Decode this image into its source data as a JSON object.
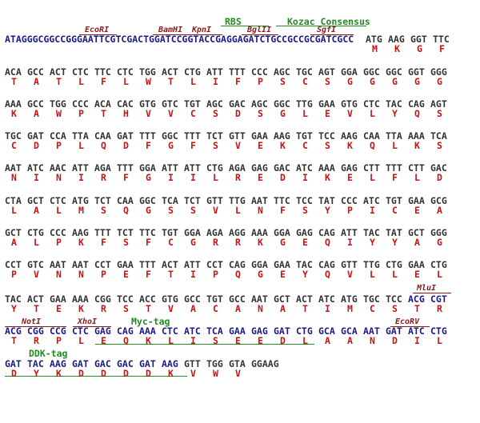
{
  "colors": {
    "dna_vector": "#1a1a8c",
    "dna_insert": "#333333",
    "amino_acid": "#cc1111",
    "restriction_site": "#8b1a1a",
    "feature": "#228b22"
  },
  "header": {
    "dna_vector": "ATAGGGCGGCCGGGAATTCGTCGACTGGATCCGGTACCGAGGAGATCTGCCGCCGCGATCGCC",
    "codons": [
      "ATG",
      "AAG",
      "GGT",
      "TTC"
    ],
    "amino_acids": [
      "M",
      "K",
      "G",
      "F"
    ],
    "sites": [
      "EcoRI",
      "BamHI",
      "KpnI",
      "BglII",
      "SgfI"
    ],
    "features": [
      "RBS",
      "Kozac Consensus"
    ]
  },
  "rows": [
    {
      "codons": [
        "ACA",
        "GCC",
        "ACT",
        "CTC",
        "TTC",
        "CTC",
        "TGG",
        "ACT",
        "CTG",
        "ATT",
        "TTT",
        "CCC",
        "AGC",
        "TGC",
        "AGT",
        "GGA",
        "GGC",
        "GGC",
        "GGT",
        "GGG"
      ],
      "amino_acids": [
        "T",
        "A",
        "T",
        "L",
        "F",
        "L",
        "W",
        "T",
        "L",
        "I",
        "F",
        "P",
        "S",
        "C",
        "S",
        "G",
        "G",
        "G",
        "G",
        "G"
      ]
    },
    {
      "codons": [
        "AAA",
        "GCC",
        "TGG",
        "CCC",
        "ACA",
        "CAC",
        "GTG",
        "GTC",
        "TGT",
        "AGC",
        "GAC",
        "AGC",
        "GGC",
        "TTG",
        "GAA",
        "GTG",
        "CTC",
        "TAC",
        "CAG",
        "AGT"
      ],
      "amino_acids": [
        "K",
        "A",
        "W",
        "P",
        "T",
        "H",
        "V",
        "V",
        "C",
        "S",
        "D",
        "S",
        "G",
        "L",
        "E",
        "V",
        "L",
        "Y",
        "Q",
        "S"
      ]
    },
    {
      "codons": [
        "TGC",
        "GAT",
        "CCA",
        "TTA",
        "CAA",
        "GAT",
        "TTT",
        "GGC",
        "TTT",
        "TCT",
        "GTT",
        "GAA",
        "AAG",
        "TGT",
        "TCC",
        "AAG",
        "CAA",
        "TTA",
        "AAA",
        "TCA"
      ],
      "amino_acids": [
        "C",
        "D",
        "P",
        "L",
        "Q",
        "D",
        "F",
        "G",
        "F",
        "S",
        "V",
        "E",
        "K",
        "C",
        "S",
        "K",
        "Q",
        "L",
        "K",
        "S"
      ]
    },
    {
      "codons": [
        "AAT",
        "ATC",
        "AAC",
        "ATT",
        "AGA",
        "TTT",
        "GGA",
        "ATT",
        "ATT",
        "CTG",
        "AGA",
        "GAG",
        "GAC",
        "ATC",
        "AAA",
        "GAG",
        "CTT",
        "TTT",
        "CTT",
        "GAC"
      ],
      "amino_acids": [
        "N",
        "I",
        "N",
        "I",
        "R",
        "F",
        "G",
        "I",
        "I",
        "L",
        "R",
        "E",
        "D",
        "I",
        "K",
        "E",
        "L",
        "F",
        "L",
        "D"
      ]
    },
    {
      "codons": [
        "CTA",
        "GCT",
        "CTC",
        "ATG",
        "TCT",
        "CAA",
        "GGC",
        "TCA",
        "TCT",
        "GTT",
        "TTG",
        "AAT",
        "TTC",
        "TCC",
        "TAT",
        "CCC",
        "ATC",
        "TGT",
        "GAA",
        "GCG"
      ],
      "amino_acids": [
        "L",
        "A",
        "L",
        "M",
        "S",
        "Q",
        "G",
        "S",
        "S",
        "V",
        "L",
        "N",
        "F",
        "S",
        "Y",
        "P",
        "I",
        "C",
        "E",
        "A"
      ]
    },
    {
      "codons": [
        "GCT",
        "CTG",
        "CCC",
        "AAG",
        "TTT",
        "TCT",
        "TTC",
        "TGT",
        "GGA",
        "AGA",
        "AGG",
        "AAA",
        "GGA",
        "GAG",
        "CAG",
        "ATT",
        "TAC",
        "TAT",
        "GCT",
        "GGG"
      ],
      "amino_acids": [
        "A",
        "L",
        "P",
        "K",
        "F",
        "S",
        "F",
        "C",
        "G",
        "R",
        "R",
        "K",
        "G",
        "E",
        "Q",
        "I",
        "Y",
        "Y",
        "A",
        "G"
      ]
    },
    {
      "codons": [
        "CCT",
        "GTC",
        "AAT",
        "AAT",
        "CCT",
        "GAA",
        "TTT",
        "ACT",
        "ATT",
        "CCT",
        "CAG",
        "GGA",
        "GAA",
        "TAC",
        "CAG",
        "GTT",
        "TTG",
        "CTG",
        "GAA",
        "CTG"
      ],
      "amino_acids": [
        "P",
        "V",
        "N",
        "N",
        "P",
        "E",
        "F",
        "T",
        "I",
        "P",
        "Q",
        "G",
        "E",
        "Y",
        "Q",
        "V",
        "L",
        "L",
        "E",
        "L"
      ]
    },
    {
      "codons": [
        "TAC",
        "ACT",
        "GAA",
        "AAA",
        "CGG",
        "TCC",
        "ACC",
        "GTG",
        "GCC",
        "TGT",
        "GCC",
        "AAT",
        "GCT",
        "ACT",
        "ATC",
        "ATG",
        "TGC",
        "TCC",
        "ACG",
        "CGT"
      ],
      "amino_acids": [
        "Y",
        "T",
        "E",
        "K",
        "R",
        "S",
        "T",
        "V",
        "A",
        "C",
        "A",
        "N",
        "A",
        "T",
        "I",
        "M",
        "C",
        "S",
        "T",
        "R"
      ]
    },
    {
      "codons": [
        "ACG",
        "CGG",
        "CCG",
        "CTC",
        "GAG",
        "CAG",
        "AAA",
        "CTC",
        "ATC",
        "TCA",
        "GAA",
        "GAG",
        "GAT",
        "CTG",
        "GCA",
        "GCA",
        "AAT",
        "GAT",
        "ATC",
        "CTG"
      ],
      "amino_acids": [
        "T",
        "R",
        "P",
        "L",
        "E",
        "Q",
        "K",
        "L",
        "I",
        "S",
        "E",
        "E",
        "D",
        "L",
        "A",
        "A",
        "N",
        "D",
        "I",
        "L"
      ]
    },
    {
      "codons": [
        "GAT",
        "TAC",
        "AAG",
        "GAT",
        "GAC",
        "GAC",
        "GAT",
        "AAG",
        "GTT",
        "TGG",
        "GTA",
        "GGAAG"
      ],
      "amino_acids": [
        "D",
        "Y",
        "K",
        "D",
        "D",
        "D",
        "D",
        "K",
        "V",
        "W",
        "V"
      ]
    }
  ],
  "annotations": {
    "mlui": "MluI",
    "noti": "NotI",
    "xhoi": "XhoI",
    "myc_tag": "Myc-tag",
    "ecorv": "EcoRV",
    "ddk_tag": "DDK-tag"
  }
}
